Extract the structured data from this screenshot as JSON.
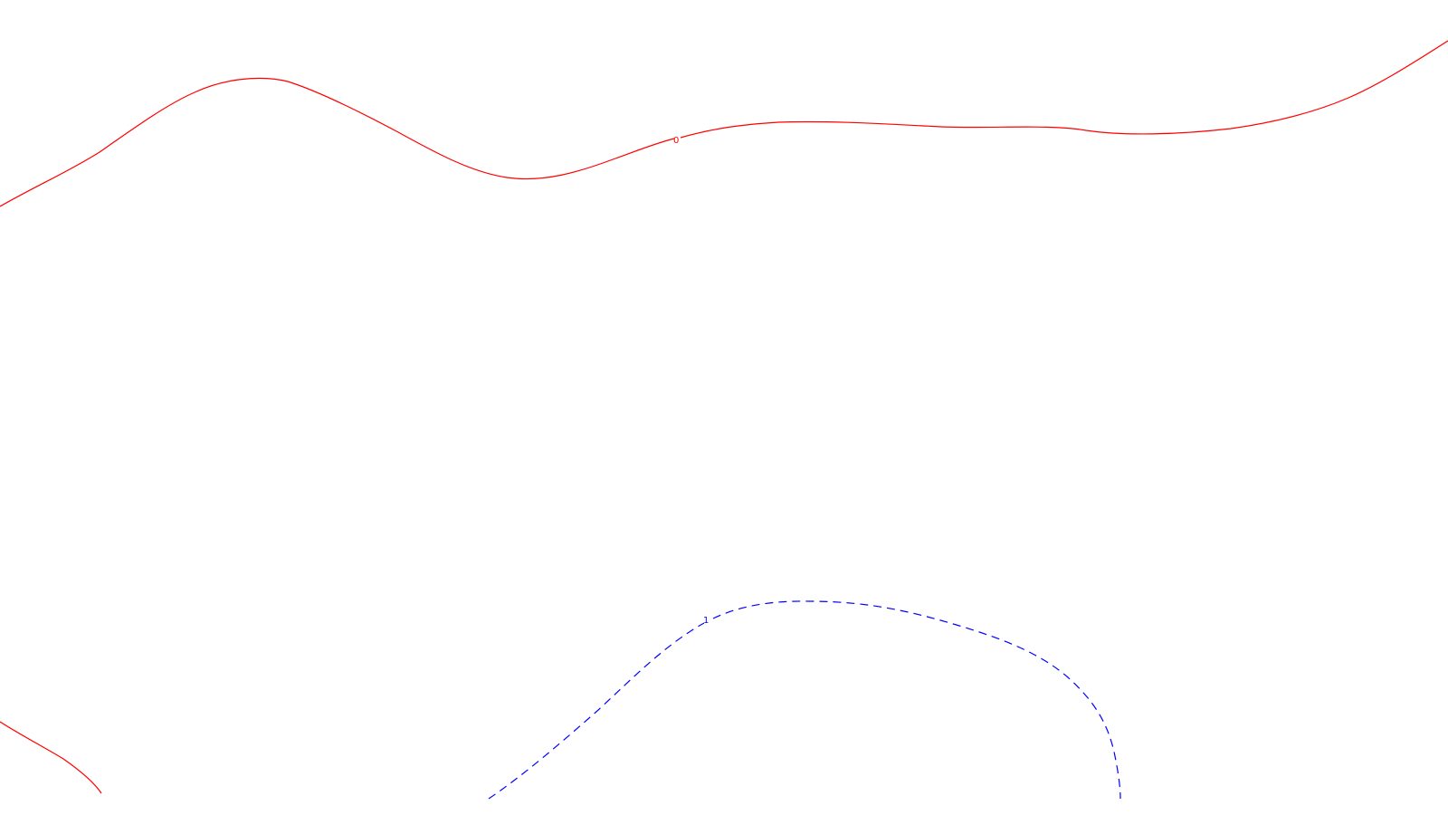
{
  "contours": [
    {
      "level_label": "0",
      "color": "#ff0000",
      "style": "solid"
    },
    {
      "level_label": "1",
      "color": "#0000ff",
      "style": "dashed"
    }
  ]
}
